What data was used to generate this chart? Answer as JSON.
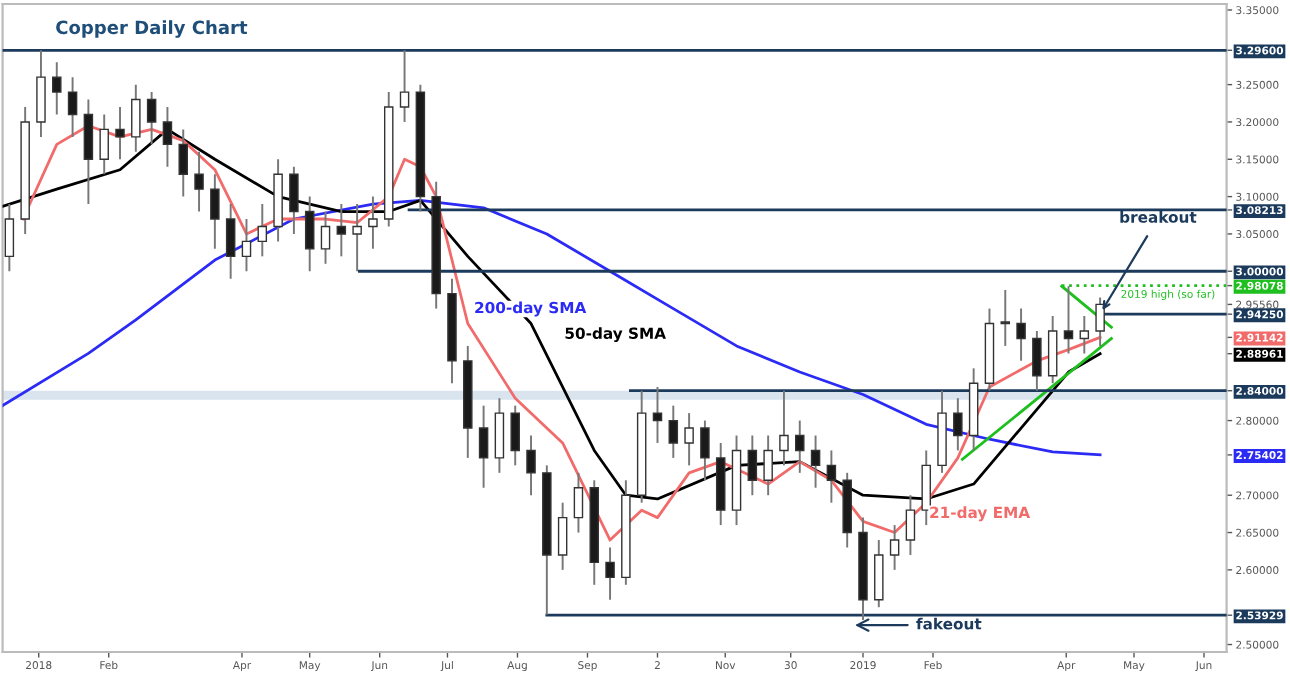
{
  "chart_data": {
    "type": "candlestick",
    "title": "Copper Daily Chart",
    "x": [
      "2017-12-19",
      "2017-12-26",
      "2018-01-02",
      "2018-01-09",
      "2018-01-16",
      "2018-01-23",
      "2018-01-30",
      "2018-02-06",
      "2018-02-13",
      "2018-02-20",
      "2018-02-27",
      "2018-03-06",
      "2018-03-13",
      "2018-03-20",
      "2018-03-27",
      "2018-04-03",
      "2018-04-10",
      "2018-04-17",
      "2018-04-24",
      "2018-05-01",
      "2018-05-08",
      "2018-05-15",
      "2018-05-22",
      "2018-05-29",
      "2018-06-05",
      "2018-06-12",
      "2018-06-19",
      "2018-06-26",
      "2018-07-03",
      "2018-07-10",
      "2018-07-17",
      "2018-07-24",
      "2018-07-31",
      "2018-08-07",
      "2018-08-14",
      "2018-08-21",
      "2018-08-28",
      "2018-09-04",
      "2018-09-11",
      "2018-09-18",
      "2018-09-25",
      "2018-10-02",
      "2018-10-09",
      "2018-10-16",
      "2018-10-23",
      "2018-10-30",
      "2018-11-06",
      "2018-11-13",
      "2018-11-20",
      "2018-11-27",
      "2018-12-04",
      "2018-12-11",
      "2018-12-18",
      "2018-12-25",
      "2019-01-01",
      "2019-01-08",
      "2019-01-15",
      "2019-01-22",
      "2019-01-29",
      "2019-02-05",
      "2019-02-12",
      "2019-02-19",
      "2019-02-26",
      "2019-03-05",
      "2019-03-12",
      "2019-03-19",
      "2019-03-26",
      "2019-04-02",
      "2019-04-09",
      "2019-04-16"
    ],
    "ohlc": [
      [
        3.02,
        3.09,
        3.0,
        3.07
      ],
      [
        3.07,
        3.22,
        3.05,
        3.2
      ],
      [
        3.2,
        3.296,
        3.18,
        3.26
      ],
      [
        3.26,
        3.28,
        3.21,
        3.24
      ],
      [
        3.24,
        3.26,
        3.18,
        3.21
      ],
      [
        3.21,
        3.23,
        3.09,
        3.15
      ],
      [
        3.15,
        3.21,
        3.13,
        3.19
      ],
      [
        3.19,
        3.22,
        3.15,
        3.18
      ],
      [
        3.18,
        3.25,
        3.16,
        3.23
      ],
      [
        3.23,
        3.24,
        3.17,
        3.2
      ],
      [
        3.2,
        3.22,
        3.14,
        3.17
      ],
      [
        3.17,
        3.19,
        3.1,
        3.13
      ],
      [
        3.13,
        3.16,
        3.08,
        3.11
      ],
      [
        3.11,
        3.13,
        3.03,
        3.07
      ],
      [
        3.07,
        3.09,
        2.99,
        3.02
      ],
      [
        3.02,
        3.07,
        3.0,
        3.04
      ],
      [
        3.04,
        3.09,
        3.02,
        3.06
      ],
      [
        3.06,
        3.15,
        3.04,
        3.13
      ],
      [
        3.13,
        3.14,
        3.05,
        3.08
      ],
      [
        3.08,
        3.1,
        3.0,
        3.03
      ],
      [
        3.03,
        3.08,
        3.01,
        3.06
      ],
      [
        3.06,
        3.09,
        3.02,
        3.05
      ],
      [
        3.05,
        3.09,
        3.0,
        3.06
      ],
      [
        3.06,
        3.1,
        3.03,
        3.07
      ],
      [
        3.07,
        3.24,
        3.06,
        3.22
      ],
      [
        3.22,
        3.296,
        3.2,
        3.24
      ],
      [
        3.24,
        3.25,
        3.08,
        3.1
      ],
      [
        3.1,
        3.12,
        2.95,
        2.97
      ],
      [
        2.97,
        2.99,
        2.85,
        2.88
      ],
      [
        2.88,
        2.9,
        2.75,
        2.79
      ],
      [
        2.79,
        2.82,
        2.71,
        2.75
      ],
      [
        2.75,
        2.83,
        2.73,
        2.81
      ],
      [
        2.81,
        2.82,
        2.74,
        2.76
      ],
      [
        2.76,
        2.78,
        2.7,
        2.73
      ],
      [
        2.73,
        2.74,
        2.54,
        2.62
      ],
      [
        2.62,
        2.69,
        2.6,
        2.67
      ],
      [
        2.67,
        2.73,
        2.65,
        2.71
      ],
      [
        2.71,
        2.72,
        2.58,
        2.61
      ],
      [
        2.61,
        2.63,
        2.56,
        2.59
      ],
      [
        2.59,
        2.72,
        2.58,
        2.7
      ],
      [
        2.7,
        2.84,
        2.69,
        2.81
      ],
      [
        2.81,
        2.845,
        2.77,
        2.8
      ],
      [
        2.8,
        2.82,
        2.75,
        2.77
      ],
      [
        2.77,
        2.81,
        2.74,
        2.79
      ],
      [
        2.79,
        2.8,
        2.72,
        2.75
      ],
      [
        2.75,
        2.77,
        2.66,
        2.68
      ],
      [
        2.68,
        2.78,
        2.66,
        2.76
      ],
      [
        2.76,
        2.78,
        2.7,
        2.72
      ],
      [
        2.72,
        2.78,
        2.7,
        2.76
      ],
      [
        2.76,
        2.84,
        2.74,
        2.78
      ],
      [
        2.78,
        2.8,
        2.73,
        2.76
      ],
      [
        2.76,
        2.78,
        2.71,
        2.74
      ],
      [
        2.74,
        2.76,
        2.69,
        2.72
      ],
      [
        2.72,
        2.73,
        2.63,
        2.65
      ],
      [
        2.65,
        2.67,
        2.533,
        2.56
      ],
      [
        2.56,
        2.64,
        2.55,
        2.62
      ],
      [
        2.62,
        2.66,
        2.6,
        2.64
      ],
      [
        2.64,
        2.7,
        2.62,
        2.68
      ],
      [
        2.68,
        2.76,
        2.66,
        2.74
      ],
      [
        2.74,
        2.84,
        2.73,
        2.81
      ],
      [
        2.81,
        2.83,
        2.76,
        2.78
      ],
      [
        2.78,
        2.87,
        2.76,
        2.85
      ],
      [
        2.85,
        2.95,
        2.84,
        2.93
      ],
      [
        2.93,
        2.975,
        2.9,
        2.93
      ],
      [
        2.93,
        2.95,
        2.88,
        2.91
      ],
      [
        2.91,
        2.92,
        2.84,
        2.86
      ],
      [
        2.86,
        2.94,
        2.85,
        2.92
      ],
      [
        2.92,
        2.98,
        2.89,
        2.91
      ],
      [
        2.91,
        2.94,
        2.89,
        2.92
      ],
      [
        2.92,
        2.965,
        2.9,
        2.9556
      ]
    ],
    "series": [
      {
        "name": "200-day SMA",
        "type": "line",
        "color": "#2b2bf5",
        "x": [
          "2017-12-16",
          "2018-01-23",
          "2018-02-13",
          "2018-03-20",
          "2018-04-24",
          "2018-05-29",
          "2018-06-19",
          "2018-07-17",
          "2018-08-14",
          "2018-09-11",
          "2018-10-09",
          "2018-11-06",
          "2018-12-04",
          "2019-01-01",
          "2019-01-29",
          "2019-02-26",
          "2019-03-26",
          "2019-04-16"
        ],
        "values": [
          2.82,
          2.89,
          2.935,
          3.015,
          3.07,
          3.09,
          3.095,
          3.085,
          3.05,
          3.0,
          2.95,
          2.9,
          2.865,
          2.835,
          2.795,
          2.775,
          2.758,
          2.75402
        ]
      },
      {
        "name": "50-day SMA",
        "type": "line",
        "color": "#000000",
        "x": [
          "2017-12-16",
          "2018-01-09",
          "2018-02-06",
          "2018-02-27",
          "2018-03-20",
          "2018-04-17",
          "2018-05-15",
          "2018-06-05",
          "2018-06-19",
          "2018-07-10",
          "2018-08-07",
          "2018-09-04",
          "2018-09-18",
          "2018-10-02",
          "2018-11-06",
          "2018-12-04",
          "2019-01-01",
          "2019-01-29",
          "2019-02-19",
          "2019-03-12",
          "2019-04-02",
          "2019-04-16"
        ],
        "values": [
          3.087,
          3.11,
          3.136,
          3.19,
          3.15,
          3.1,
          3.08,
          3.08,
          3.095,
          3.02,
          2.93,
          2.76,
          2.7,
          2.695,
          2.74,
          2.745,
          2.7,
          2.695,
          2.715,
          2.79,
          2.865,
          2.88961
        ]
      },
      {
        "name": "21-day EMA",
        "type": "line",
        "color": "#f26b6b",
        "x": [
          "2017-12-25",
          "2018-01-09",
          "2018-01-23",
          "2018-02-06",
          "2018-02-20",
          "2018-03-06",
          "2018-03-20",
          "2018-04-03",
          "2018-04-17",
          "2018-05-08",
          "2018-05-22",
          "2018-06-05",
          "2018-06-12",
          "2018-06-19",
          "2018-06-26",
          "2018-07-10",
          "2018-07-31",
          "2018-08-21",
          "2018-09-11",
          "2018-09-25",
          "2018-10-02",
          "2018-10-16",
          "2018-10-30",
          "2018-11-20",
          "2018-12-04",
          "2018-12-18",
          "2019-01-01",
          "2019-01-15",
          "2019-01-29",
          "2019-02-12",
          "2019-02-26",
          "2019-03-19",
          "2019-04-02",
          "2019-04-16"
        ],
        "values": [
          3.07,
          3.17,
          3.195,
          3.18,
          3.19,
          3.175,
          3.136,
          3.05,
          3.07,
          3.07,
          3.065,
          3.1,
          3.15,
          3.14,
          3.1,
          2.93,
          2.83,
          2.77,
          2.64,
          2.68,
          2.67,
          2.73,
          2.745,
          2.715,
          2.745,
          2.72,
          2.665,
          2.65,
          2.69,
          2.75,
          2.845,
          2.88,
          2.895,
          2.91142
        ]
      },
      {
        "type": "line",
        "color": "#1fbf1f",
        "x": [
          "2019-02-14",
          "2019-04-21"
        ],
        "values": [
          2.748,
          2.91
        ]
      },
      {
        "type": "line",
        "color": "#1fbf1f",
        "x": [
          "2019-03-30",
          "2019-04-21"
        ],
        "values": [
          2.98,
          2.925
        ]
      },
      {
        "type": "line",
        "color": "#1b3a5c",
        "x": [
          "2017-12-16",
          "2019-06-11"
        ],
        "values": [
          3.296,
          3.296
        ]
      },
      {
        "type": "line",
        "color": "#1b3a5c",
        "x": [
          "2018-06-14",
          "2019-06-11"
        ],
        "values": [
          3.08213,
          3.08213
        ]
      },
      {
        "type": "line",
        "color": "#1b3a5c",
        "x": [
          "2018-05-23",
          "2019-06-11"
        ],
        "values": [
          3.0,
          3.0
        ]
      },
      {
        "type": "line",
        "color": "#1fbf1f",
        "line_style": "dotted",
        "x": [
          "2019-03-30",
          "2019-06-11"
        ],
        "values": [
          2.98078,
          2.98078
        ]
      },
      {
        "type": "line",
        "color": "#1b3a5c",
        "x": [
          "2019-04-17",
          "2019-06-11"
        ],
        "values": [
          2.9425,
          2.9425
        ]
      },
      {
        "type": "line",
        "color": "#1b3a5c",
        "x": [
          "2018-09-20",
          "2019-06-11"
        ],
        "values": [
          2.84,
          2.84
        ]
      },
      {
        "type": "line",
        "color": "#1b3a5c",
        "x": [
          "2018-08-14",
          "2019-06-11"
        ],
        "values": [
          2.53929,
          2.53929
        ]
      }
    ],
    "bands": [
      {
        "axis": "y",
        "from": 2.828,
        "to": 2.84,
        "color": "#d9e4ef"
      }
    ],
    "annotations": [
      {
        "text": "breakout",
        "x": "2019-04-17",
        "y": 2.948
      },
      {
        "text": "fakeout",
        "x": "2019-02-08",
        "y": 2.526
      },
      {
        "text": "2019 high (so far)",
        "x": "2019-06-06",
        "y": 2.98078
      }
    ],
    "xlim": [
      "2017-12-16",
      "2019-06-11"
    ],
    "xticks": [
      {
        "value": "2018-01-01",
        "label": "2018"
      },
      {
        "value": "2018-02-01",
        "label": "Feb"
      },
      {
        "value": "2018-04-01",
        "label": "Apr"
      },
      {
        "value": "2018-05-01",
        "label": "May"
      },
      {
        "value": "2018-06-01",
        "label": "Jun"
      },
      {
        "value": "2018-07-01",
        "label": "Jul"
      },
      {
        "value": "2018-08-01",
        "label": "Aug"
      },
      {
        "value": "2018-09-01",
        "label": "Sep"
      },
      {
        "value": "2018-10-02",
        "label": "2"
      },
      {
        "value": "2018-11-01",
        "label": "Nov"
      },
      {
        "value": "2018-11-30",
        "label": "30"
      },
      {
        "value": "2019-01-01",
        "label": "2019"
      },
      {
        "value": "2019-02-01",
        "label": "Feb"
      },
      {
        "value": "2019-04-01",
        "label": "Apr"
      },
      {
        "value": "2019-05-01",
        "label": "May"
      },
      {
        "value": "2019-06-01",
        "label": "Jun"
      }
    ],
    "ylim": [
      2.49,
      3.358
    ],
    "yticks": [
      {
        "value": 3.35,
        "label": "3.35000"
      },
      {
        "value": 3.296,
        "label": "3.29600"
      },
      {
        "value": 3.25,
        "label": "3.25000"
      },
      {
        "value": 3.2,
        "label": "3.20000"
      },
      {
        "value": 3.15,
        "label": "3.15000"
      },
      {
        "value": 3.1,
        "label": "3.10000"
      },
      {
        "value": 3.08213,
        "label": "3.08213"
      },
      {
        "value": 3.05,
        "label": "3.05000"
      },
      {
        "value": 3.0,
        "label": "3.00000"
      },
      {
        "value": 2.98078,
        "label": "2.98078"
      },
      {
        "value": 2.9556,
        "label": "2.95560"
      },
      {
        "value": 2.9425,
        "label": "2.94250"
      },
      {
        "value": 2.91142,
        "label": "2.91142"
      },
      {
        "value": 2.88961,
        "label": "2.88961"
      },
      {
        "value": 2.84,
        "label": "2.84000"
      },
      {
        "value": 2.8,
        "label": "2.80000"
      },
      {
        "value": 2.75402,
        "label": "2.75402"
      },
      {
        "value": 2.7,
        "label": "2.70000"
      },
      {
        "value": 2.65,
        "label": "2.65000"
      },
      {
        "value": 2.6,
        "label": "2.60000"
      },
      {
        "value": 2.53929,
        "label": "2.53929"
      },
      {
        "value": 2.5,
        "label": "2.50000"
      }
    ],
    "grid": false,
    "legend": false
  }
}
